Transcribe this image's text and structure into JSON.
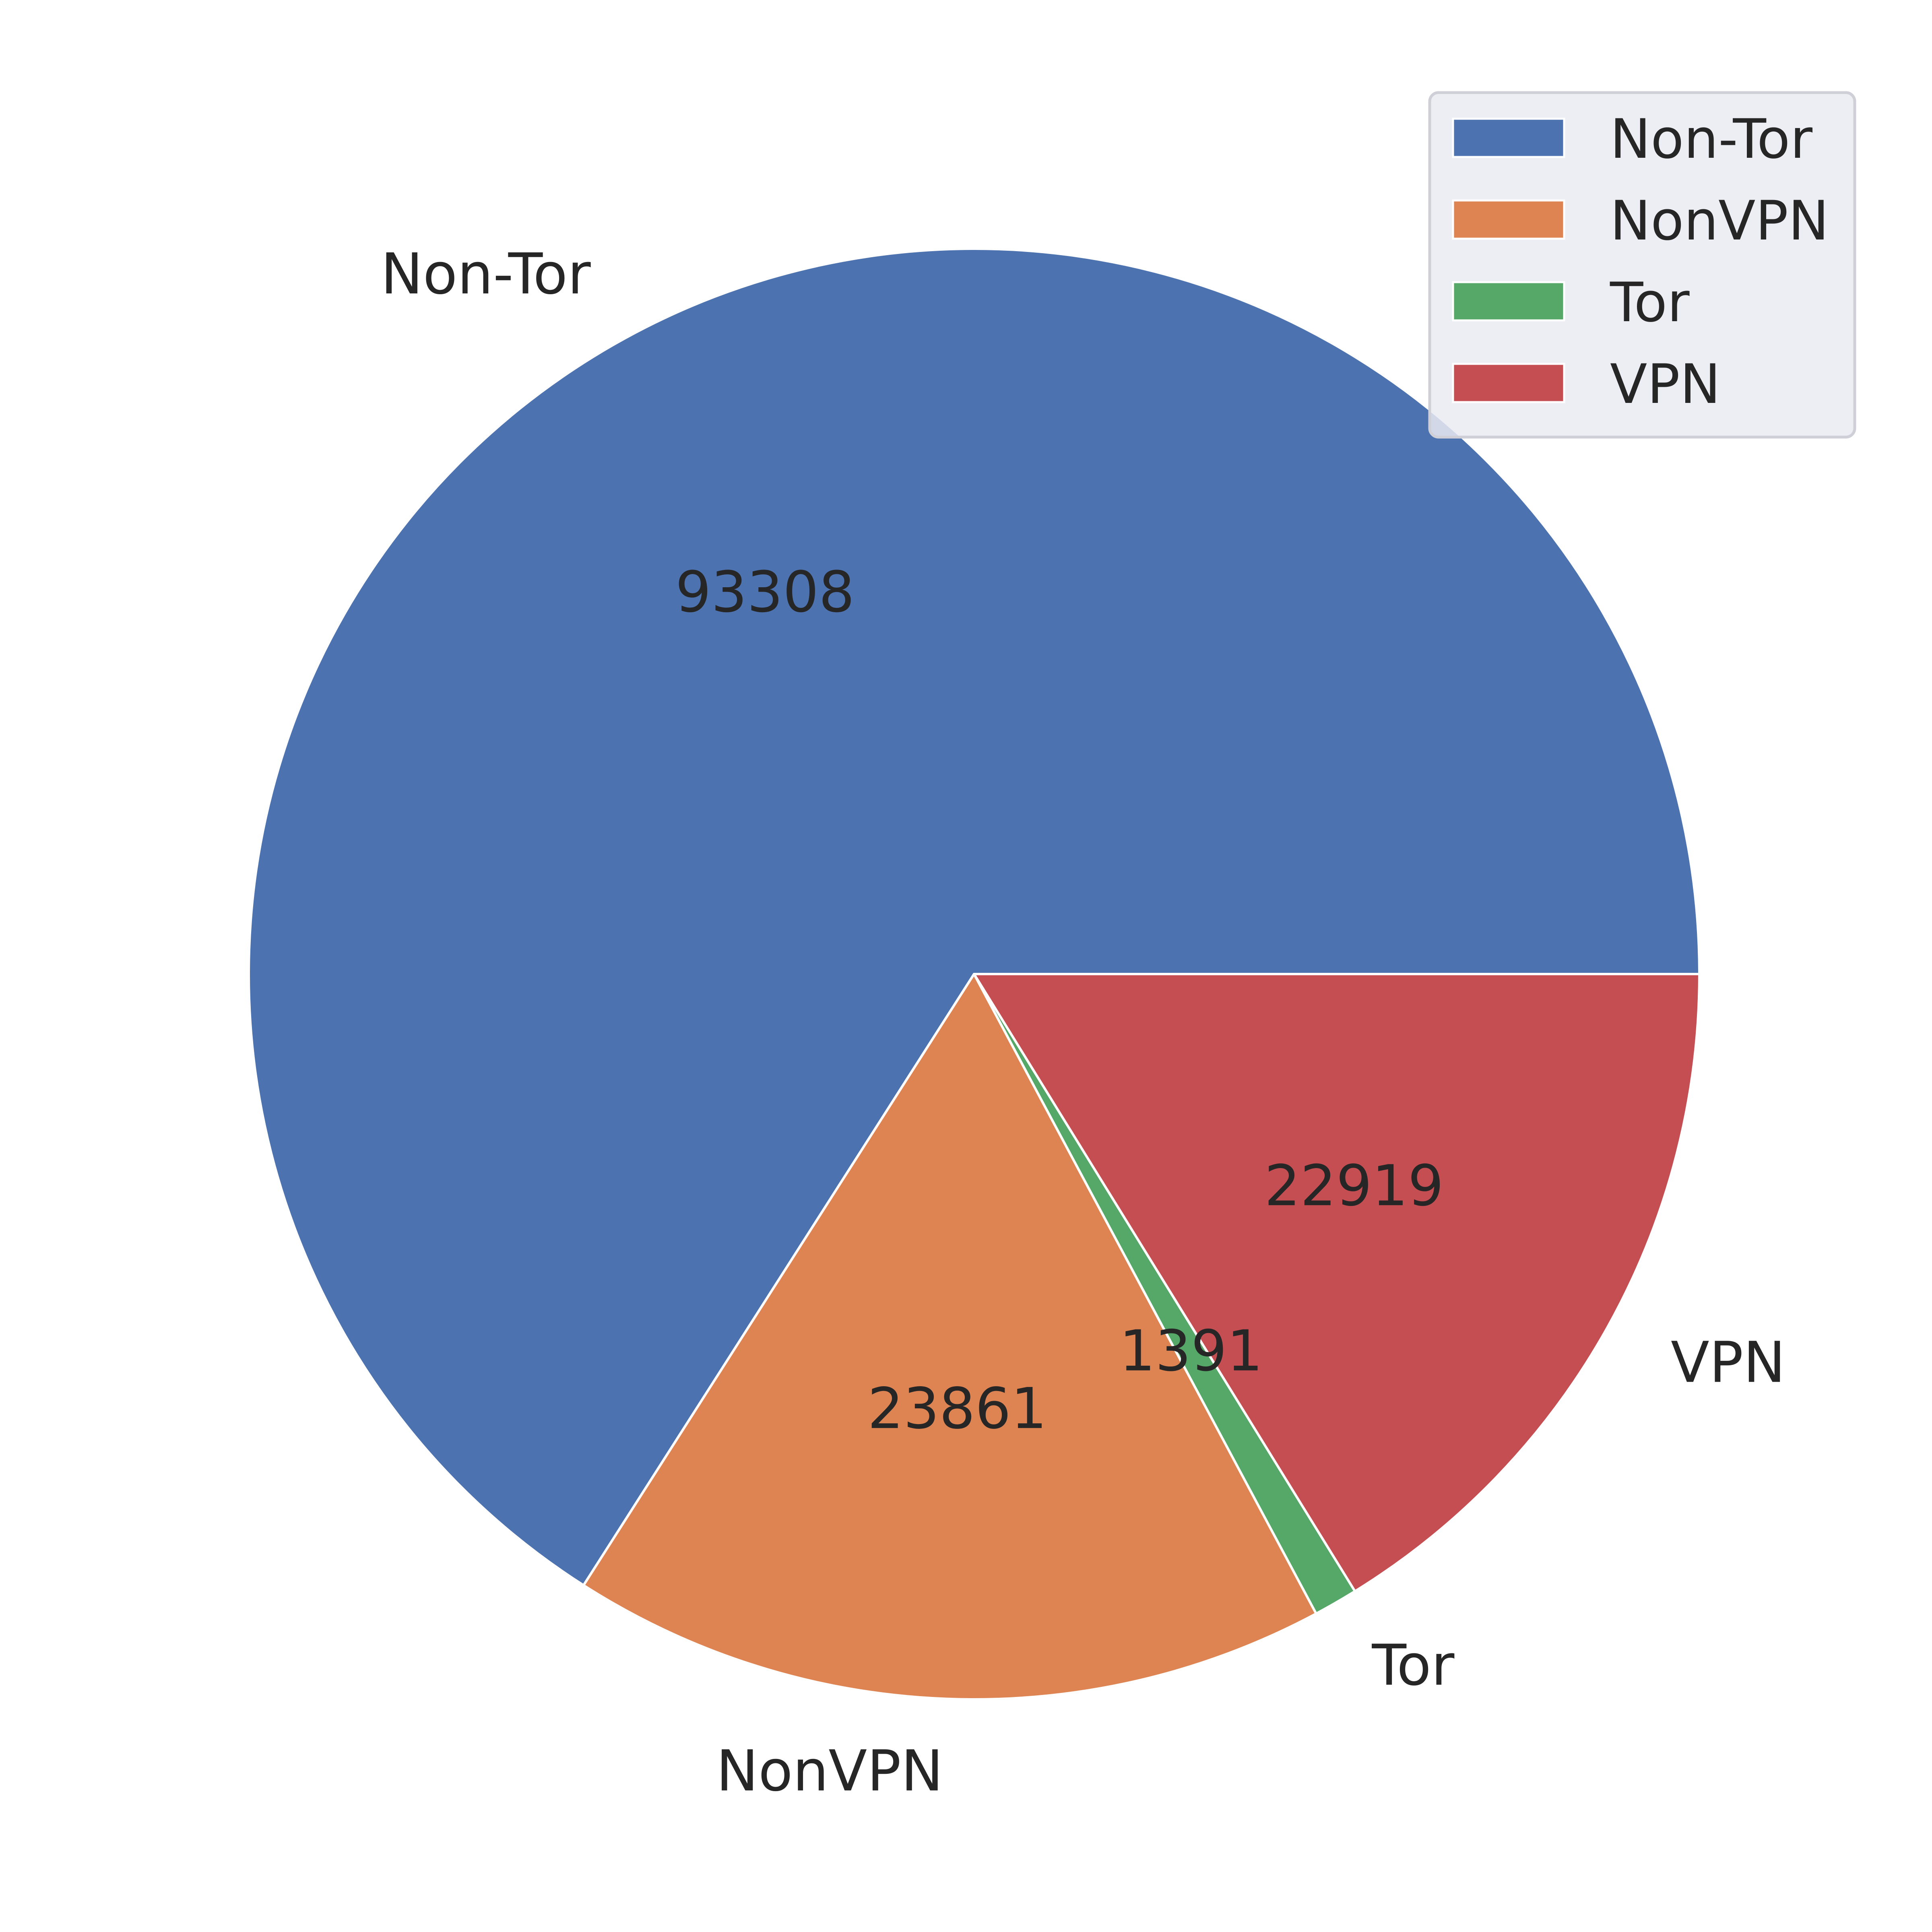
{
  "chart_data": {
    "type": "pie",
    "labels": [
      "Non-Tor",
      "NonVPN",
      "Tor",
      "VPN"
    ],
    "values": [
      93308,
      23861,
      1391,
      22919
    ],
    "value_labels": [
      "93308",
      "23861",
      "1391",
      "22919"
    ],
    "colors": [
      "#4c72b0",
      "#dd8452",
      "#55a868",
      "#c44e52"
    ],
    "start_angle_deg": 0,
    "direction": "counterclockwise",
    "legend": {
      "placement": "top-right",
      "entries": [
        "Non-Tor",
        "NonVPN",
        "Tor",
        "VPN"
      ]
    }
  }
}
